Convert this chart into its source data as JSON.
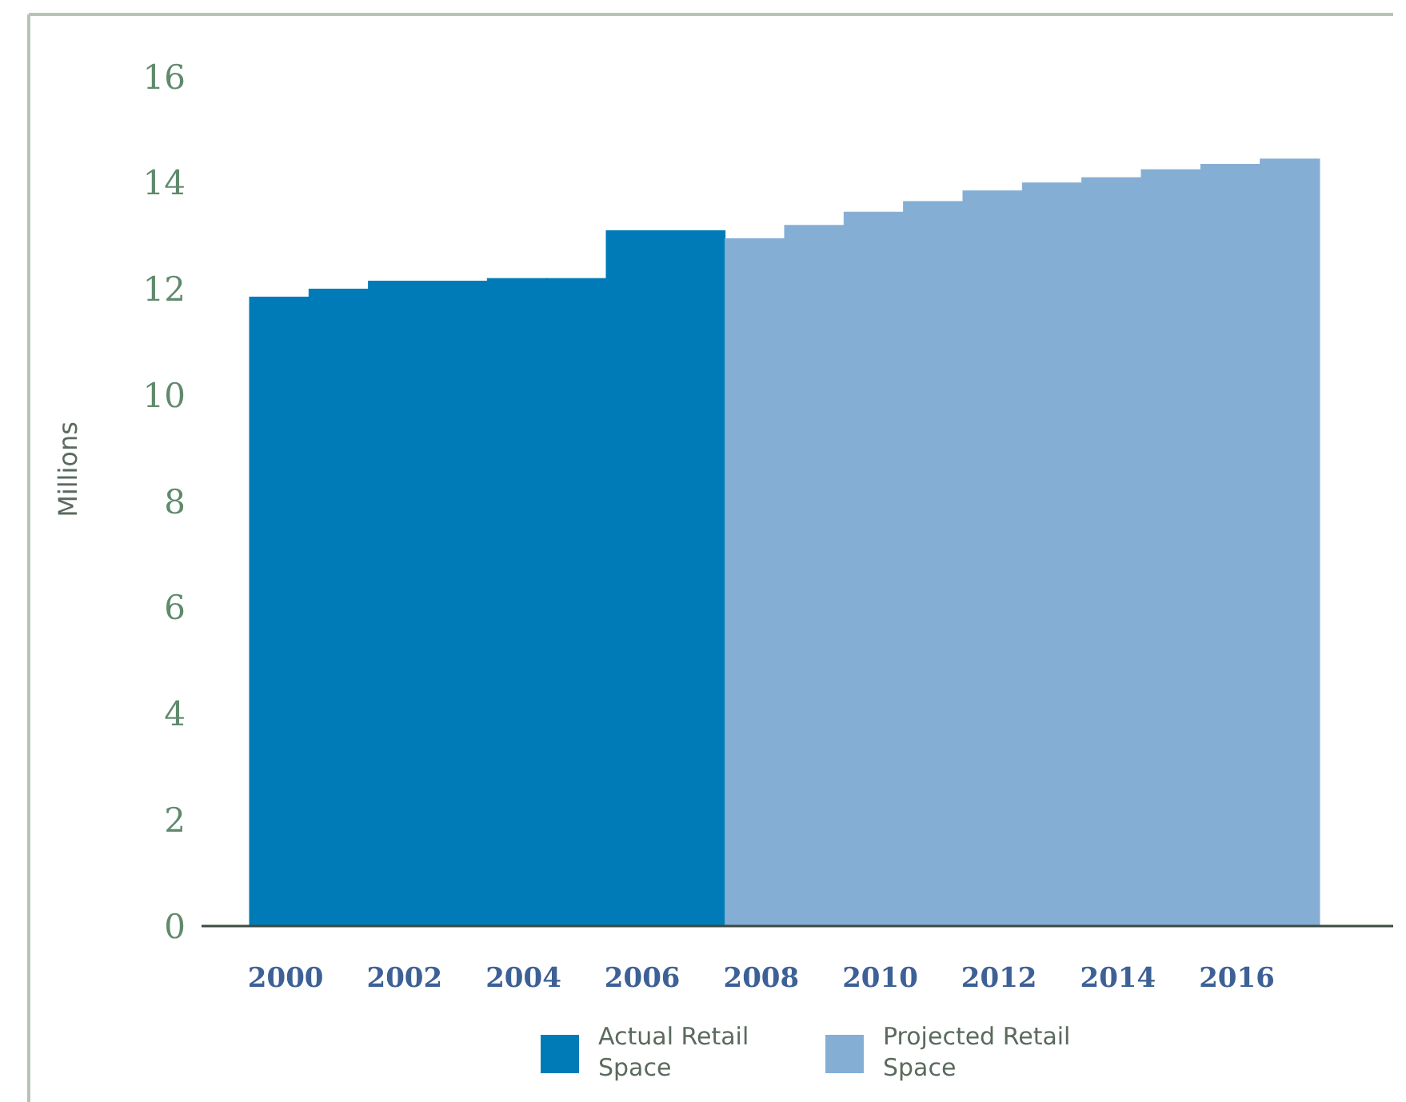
{
  "chart_data": {
    "type": "bar",
    "ylabel": "Millions",
    "categories": [
      "2000",
      null,
      "2002",
      null,
      "2004",
      null,
      "2006",
      null,
      "2008",
      null,
      "2010",
      null,
      "2012",
      null,
      "2014",
      null,
      "2016",
      null
    ],
    "series": [
      {
        "name": "Actual Retail Space",
        "color": "#007bb8",
        "values": [
          11.85,
          12.0,
          12.15,
          12.15,
          12.2,
          12.2,
          13.1,
          13.1,
          null,
          null,
          null,
          null,
          null,
          null,
          null,
          null,
          null,
          null
        ]
      },
      {
        "name": "Projected Retail Space",
        "color": "#84aed4",
        "values": [
          null,
          null,
          null,
          null,
          null,
          null,
          null,
          null,
          12.95,
          13.2,
          13.45,
          13.65,
          13.85,
          14.0,
          14.1,
          14.25,
          14.35,
          14.45
        ]
      }
    ],
    "ylim": [
      0,
      16
    ],
    "yticks": [
      0,
      2,
      4,
      6,
      8,
      10,
      12,
      14,
      16
    ],
    "grid": false,
    "legend": "bottom"
  }
}
